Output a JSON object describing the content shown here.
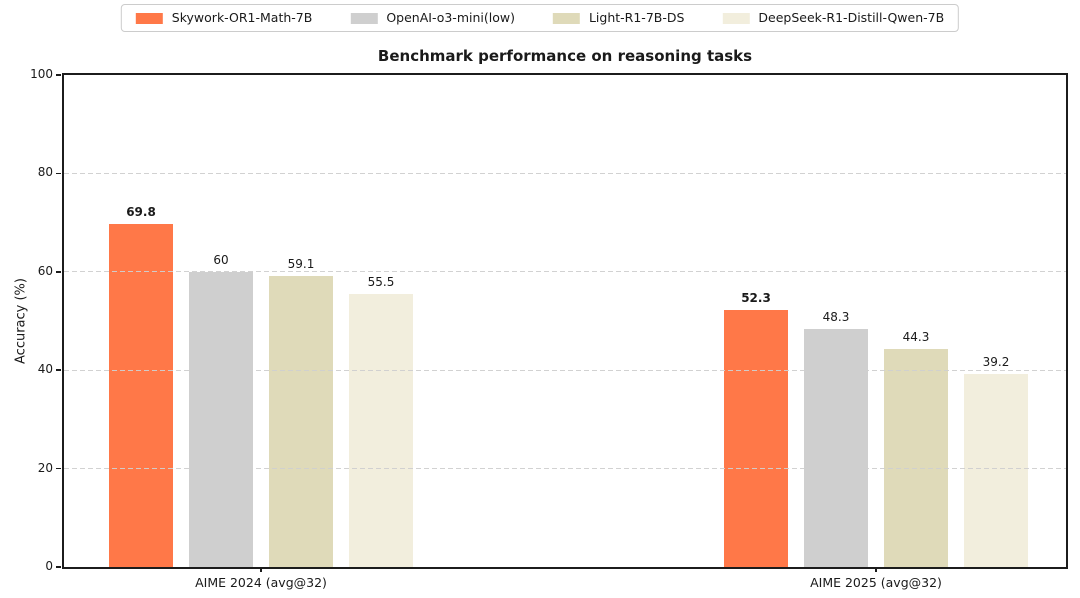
{
  "figure": {
    "background": "#ffffff",
    "axis_color": "#1c1c1c",
    "grid_color": "#cfcfcf"
  },
  "chart_data": {
    "type": "bar",
    "title": "Benchmark performance on reasoning tasks",
    "xlabel": "",
    "ylabel": "Accuracy (%)",
    "ylim": [
      0,
      100
    ],
    "yticks": [
      0,
      20,
      40,
      60,
      80,
      100
    ],
    "grid": true,
    "grid_style": "dashed",
    "legend_position": "top-center-outside",
    "categories": [
      "AIME 2024 (avg@32)",
      "AIME 2025 (avg@32)"
    ],
    "series": [
      {
        "name": "Skywork-OR1-Math-7B",
        "color": "#FF7848",
        "values": [
          69.8,
          52.3
        ],
        "bold_value_labels": true
      },
      {
        "name": "OpenAI-o3-mini(low)",
        "color": "#CFCFCF",
        "values": [
          60,
          48.3
        ],
        "bold_value_labels": false
      },
      {
        "name": "Light-R1-7B-DS",
        "color": "#DFDAB9",
        "values": [
          59.1,
          44.3
        ],
        "bold_value_labels": false
      },
      {
        "name": "DeepSeek-R1-Distill-Qwen-7B",
        "color": "#F2EEDD",
        "values": [
          55.5,
          39.2
        ],
        "bold_value_labels": false
      }
    ],
    "value_labels": [
      [
        "69.8",
        "60",
        "59.1",
        "55.5"
      ],
      [
        "52.3",
        "48.3",
        "44.3",
        "39.2"
      ]
    ]
  }
}
